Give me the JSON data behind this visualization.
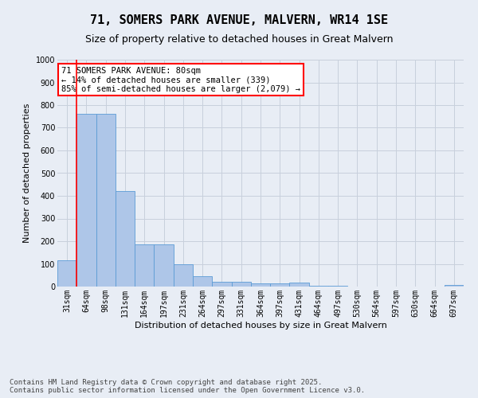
{
  "title": "71, SOMERS PARK AVENUE, MALVERN, WR14 1SE",
  "subtitle": "Size of property relative to detached houses in Great Malvern",
  "xlabel": "Distribution of detached houses by size in Great Malvern",
  "ylabel": "Number of detached properties",
  "categories": [
    "31sqm",
    "64sqm",
    "98sqm",
    "131sqm",
    "164sqm",
    "197sqm",
    "231sqm",
    "264sqm",
    "297sqm",
    "331sqm",
    "364sqm",
    "397sqm",
    "431sqm",
    "464sqm",
    "497sqm",
    "530sqm",
    "564sqm",
    "597sqm",
    "630sqm",
    "664sqm",
    "697sqm"
  ],
  "values": [
    115,
    760,
    760,
    420,
    185,
    185,
    97,
    45,
    22,
    22,
    13,
    13,
    16,
    5,
    2,
    0,
    0,
    0,
    0,
    0,
    7
  ],
  "bar_color": "#aec6e8",
  "bar_edge_color": "#5b9bd5",
  "grid_color": "#c8d0dc",
  "bg_color": "#e8edf5",
  "vline_color": "red",
  "annotation_text": "71 SOMERS PARK AVENUE: 80sqm\n← 14% of detached houses are smaller (339)\n85% of semi-detached houses are larger (2,079) →",
  "annotation_box_color": "white",
  "annotation_box_edge": "red",
  "ylim": [
    0,
    1000
  ],
  "yticks": [
    0,
    100,
    200,
    300,
    400,
    500,
    600,
    700,
    800,
    900,
    1000
  ],
  "footer": "Contains HM Land Registry data © Crown copyright and database right 2025.\nContains public sector information licensed under the Open Government Licence v3.0.",
  "title_fontsize": 11,
  "subtitle_fontsize": 9,
  "label_fontsize": 8,
  "tick_fontsize": 7,
  "annotation_fontsize": 7.5,
  "footer_fontsize": 6.5
}
